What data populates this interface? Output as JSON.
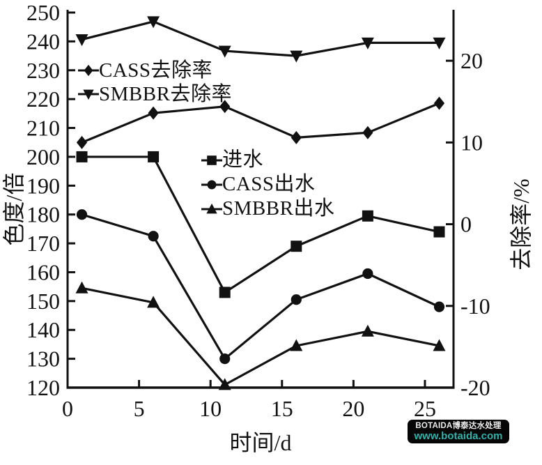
{
  "chart_data": {
    "type": "line",
    "x": [
      1,
      6,
      11,
      16,
      21,
      26
    ],
    "xlabel": "时间/d",
    "ylabel_left": "色度/倍",
    "ylabel_right": "去除率/%",
    "xlim": [
      0,
      27
    ],
    "x_ticks": [
      0,
      5,
      10,
      15,
      20,
      25
    ],
    "ylim_left": [
      120,
      250
    ],
    "yticks_left": [
      120,
      130,
      140,
      150,
      160,
      170,
      180,
      190,
      200,
      210,
      220,
      230,
      240,
      250
    ],
    "ylim_right": [
      -20,
      25.9
    ],
    "yticks_right": [
      -20,
      -10,
      0,
      10,
      20
    ],
    "grid": false,
    "series": [
      {
        "name": "进水",
        "axis": "left",
        "marker": "square",
        "values": [
          200,
          200,
          153,
          169,
          179.5,
          174
        ]
      },
      {
        "name": "CASS出水",
        "axis": "left",
        "marker": "circle",
        "values": [
          180,
          172.5,
          130,
          150.5,
          159.5,
          148
        ]
      },
      {
        "name": "SMBBR出水",
        "axis": "left",
        "marker": "triangle-up",
        "values": [
          154.5,
          149.5,
          121,
          134.5,
          139.5,
          134.5
        ]
      },
      {
        "name": "CASS去除率",
        "axis": "right",
        "marker": "diamond",
        "values": [
          10.0,
          13.6,
          14.4,
          10.6,
          11.2,
          14.8
        ]
      },
      {
        "name": "SMBBR去除率",
        "axis": "right",
        "marker": "triangle-down",
        "values": [
          22.6,
          24.8,
          21.2,
          20.6,
          22.2,
          22.2
        ]
      }
    ],
    "legends": {
      "removal": [
        {
          "label": "CASS去除率",
          "marker": "diamond"
        },
        {
          "label": "SMBBR去除率",
          "marker": "triangle-down"
        }
      ],
      "water": [
        {
          "label": "进水",
          "marker": "square"
        },
        {
          "label": "CASS出水",
          "marker": "circle"
        },
        {
          "label": "SMBBR出水",
          "marker": "triangle-up"
        }
      ]
    },
    "line_color": "#111111",
    "background": "#ffffff"
  },
  "watermark": {
    "line1": "BOTAIDA博泰达水处理",
    "line2": "www.botaida.com",
    "bg_color": "#060606",
    "text_color": "#ededed",
    "link_color": "#35b0ab"
  }
}
